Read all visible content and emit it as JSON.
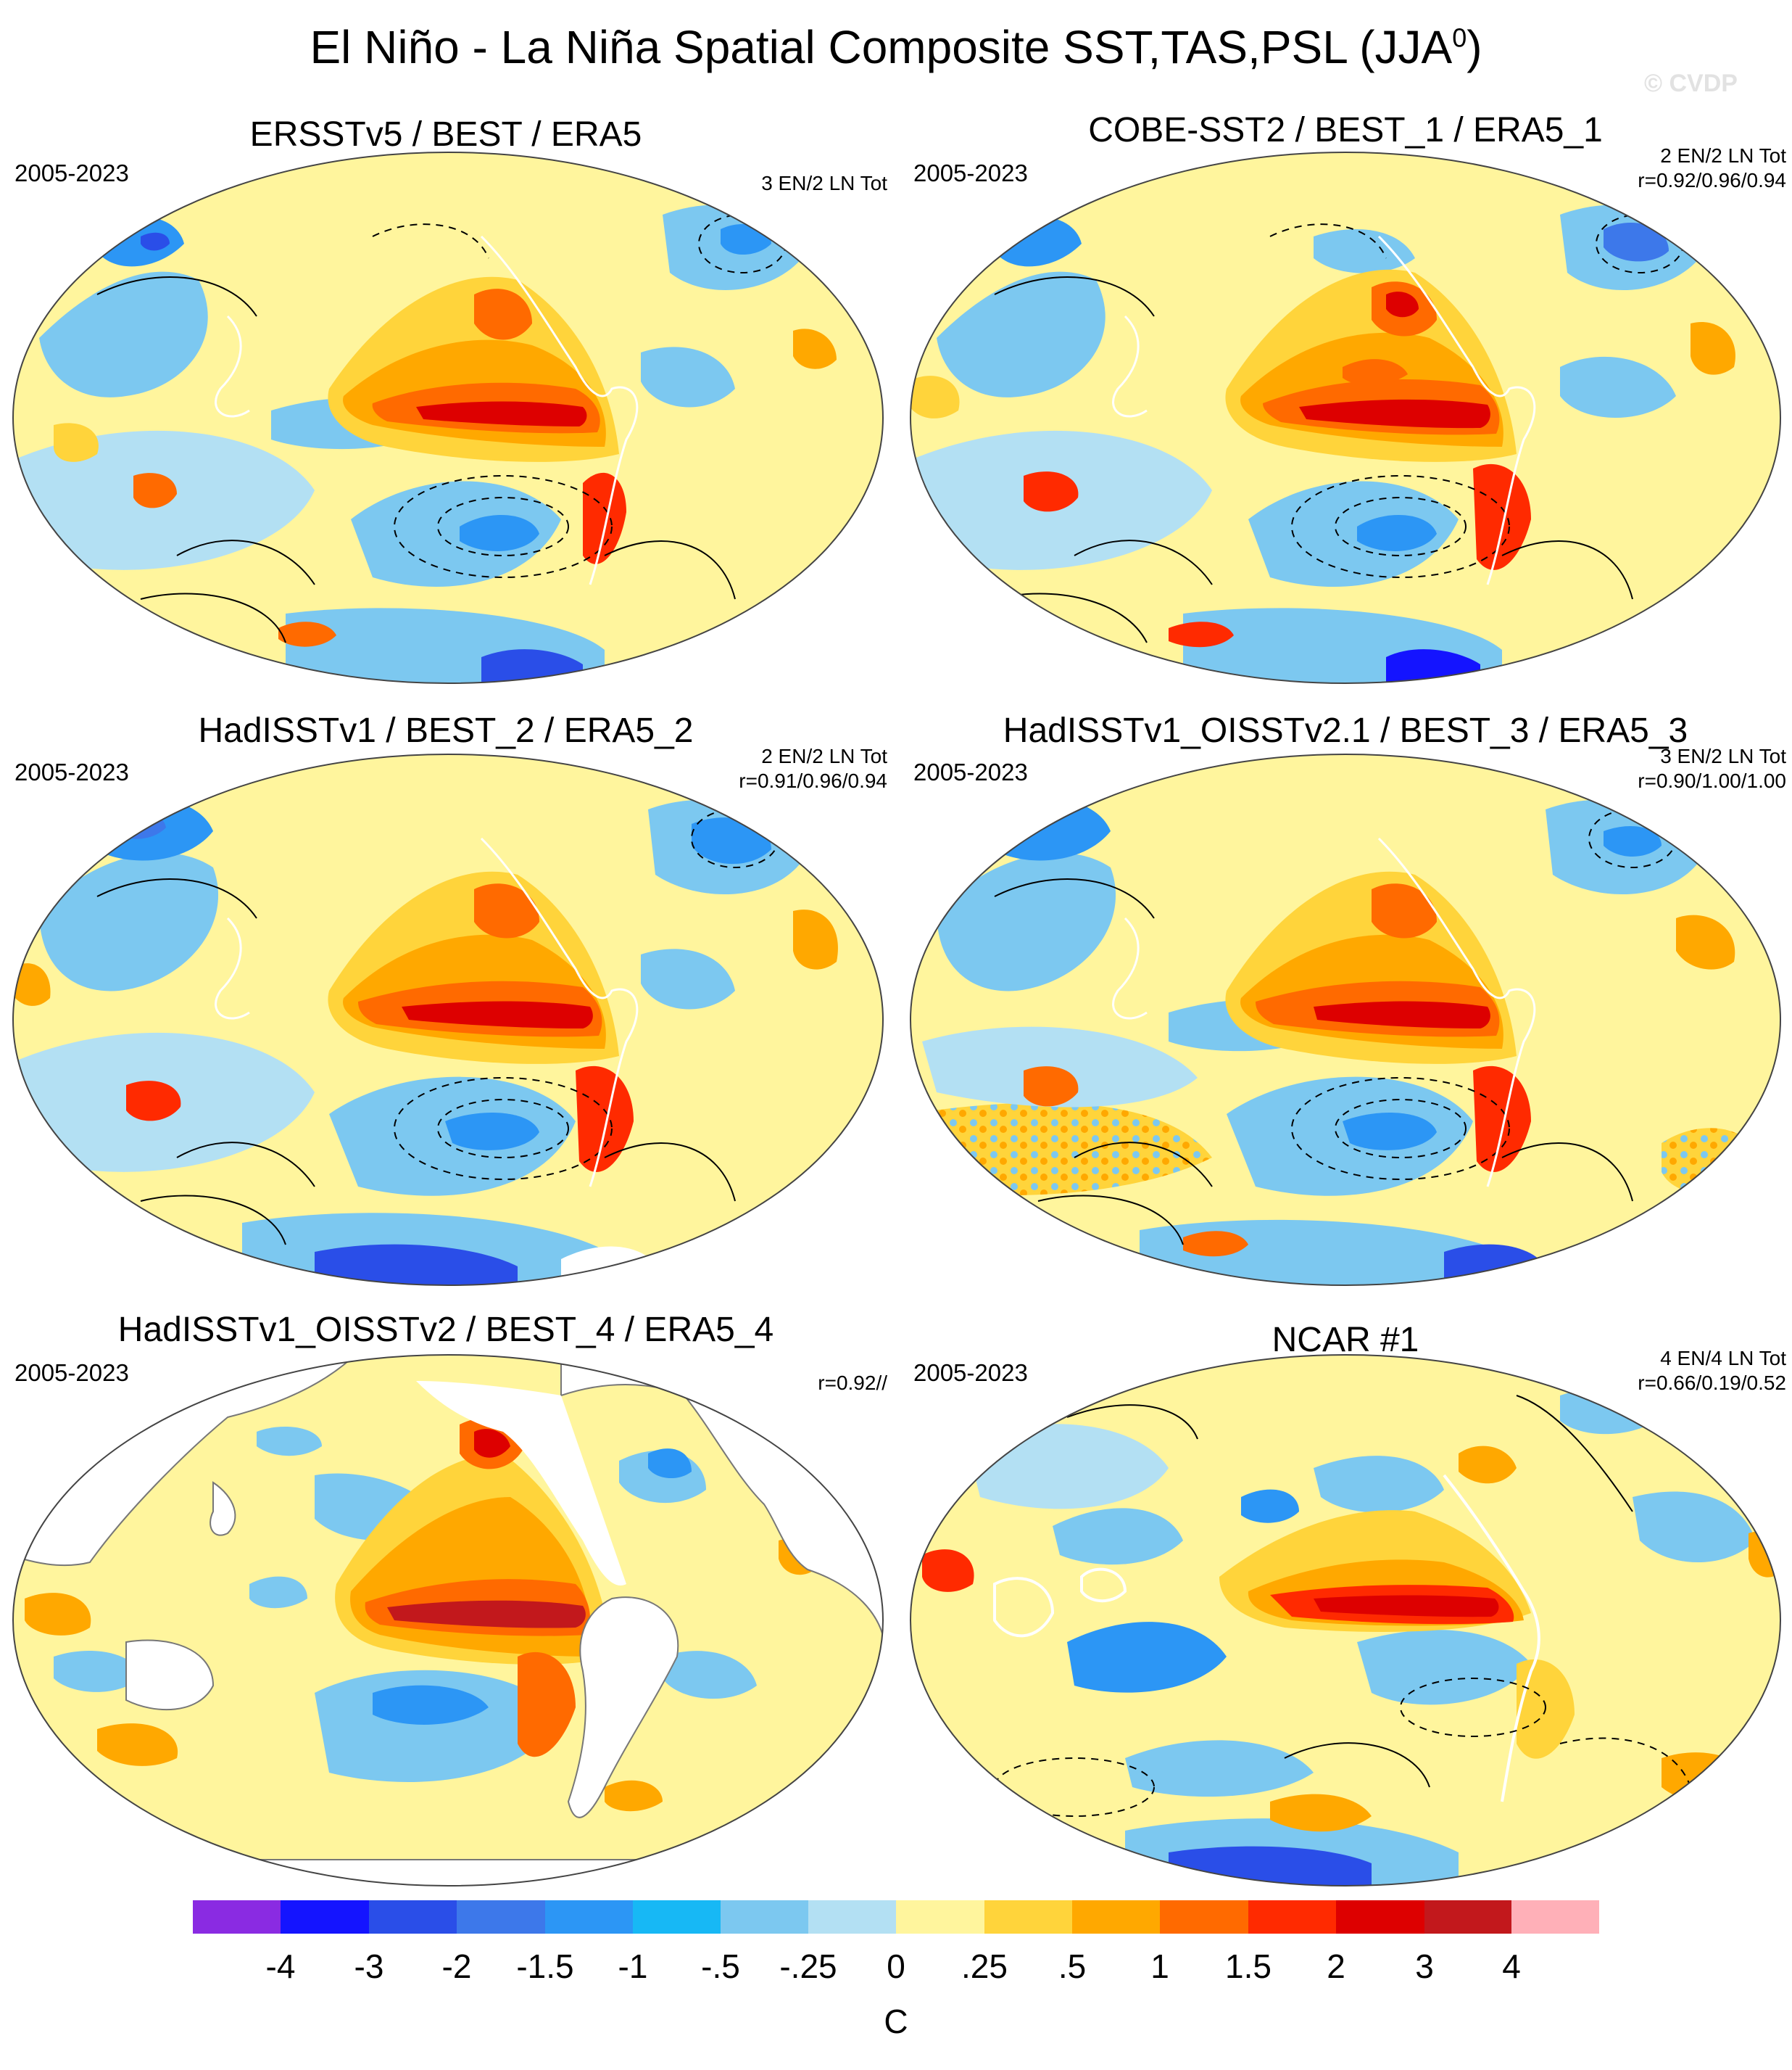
{
  "title": {
    "text": "El Niño - La Niña Spatial Composite SST,TAS,PSL (JJA",
    "superscript": "0",
    "suffix": ")"
  },
  "watermark": "© CVDP",
  "panels": [
    {
      "title": "ERSSTv5 / BEST / ERA5",
      "period": "2005-2023",
      "line1": "3 EN/2 LN Tot",
      "line2": ""
    },
    {
      "title": "COBE-SST2 / BEST_1 / ERA5_1",
      "period": "2005-2023",
      "line1": "2 EN/2 LN Tot",
      "line2": "r=0.92/0.96/0.94"
    },
    {
      "title": "HadISSTv1 / BEST_2 / ERA5_2",
      "period": "2005-2023",
      "line1": "2 EN/2 LN Tot",
      "line2": "r=0.91/0.96/0.94"
    },
    {
      "title": "HadISSTv1_OISSTv2.1 / BEST_3 / ERA5_3",
      "period": "2005-2023",
      "line1": "3 EN/2 LN Tot",
      "line2": "r=0.90/1.00/1.00"
    },
    {
      "title": "HadISSTv1_OISSTv2 / BEST_4 / ERA5_4",
      "period": "2005-2023",
      "line1": "r=0.92//",
      "line2": ""
    },
    {
      "title": "NCAR #1",
      "period": "2005-2023",
      "line1": "4 EN/4 LN Tot",
      "line2": "r=0.66/0.19/0.52"
    }
  ],
  "colorbar": {
    "units": "C",
    "labels": [
      "-4",
      "-3",
      "-2",
      "-1.5",
      "-1",
      "-.5",
      "-.25",
      "0",
      ".25",
      ".5",
      "1",
      "1.5",
      "2",
      "3",
      "4"
    ],
    "colors": [
      "#8a2be2",
      "#1414ff",
      "#2a4ee8",
      "#3d78ea",
      "#2c96f5",
      "#17b8f5",
      "#7cc8f0",
      "#b3e0f3",
      "#fff59d",
      "#ffd43b",
      "#ffa800",
      "#ff6a00",
      "#ff2a00",
      "#dd0000",
      "#c2181c",
      "#ffb0b8"
    ]
  }
}
